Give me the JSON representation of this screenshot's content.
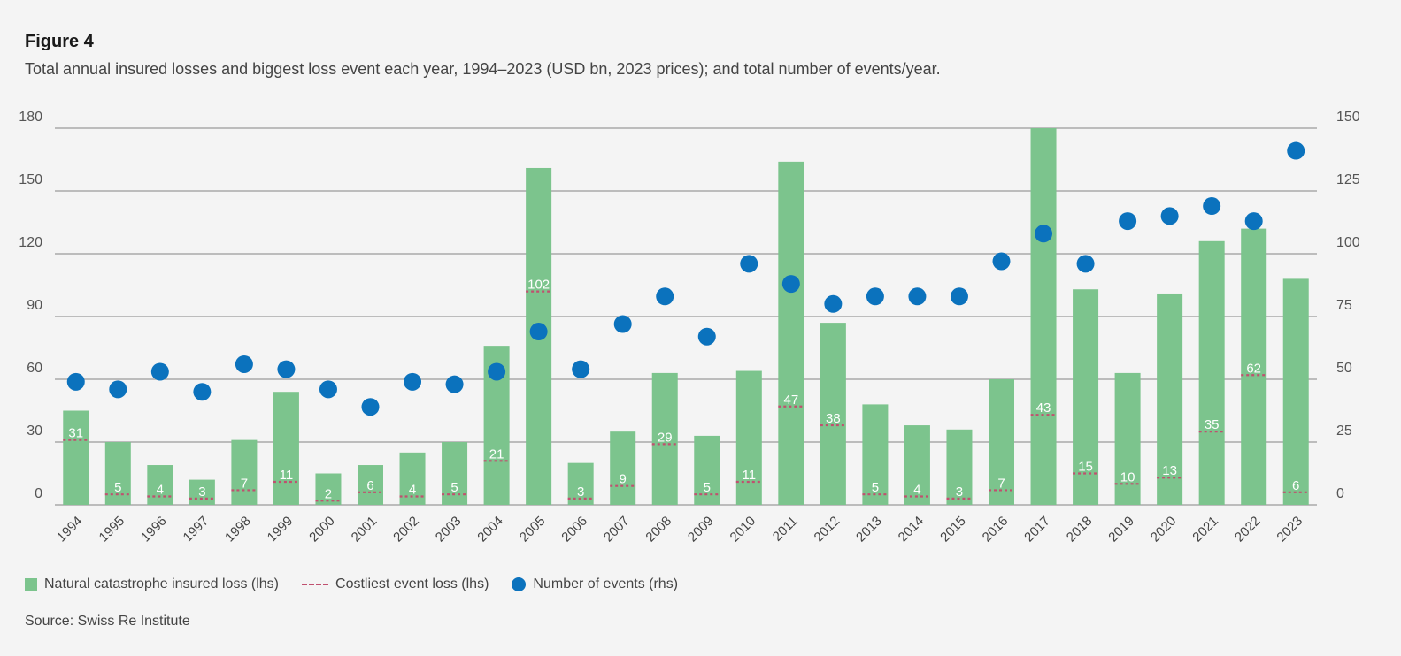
{
  "figure_label": "Figure 4",
  "subtitle": "Total annual insured losses and biggest loss event each year, 1994–2023 (USD bn, 2023 prices); and total number of events/year.",
  "source": "Source: Swiss Re Institute",
  "legend": {
    "bar": "Natural catastrophe insured loss (lhs)",
    "dash": "Costliest event loss (lhs)",
    "dot": "Number of events (rhs)"
  },
  "colors": {
    "bar": "#7cc48d",
    "dash": "#c0506f",
    "dot": "#0b72bd",
    "grid": "#9a9a9a"
  },
  "chart_data": {
    "type": "bar",
    "categories": [
      "1994",
      "1995",
      "1996",
      "1997",
      "1998",
      "1999",
      "2000",
      "2001",
      "2002",
      "2003",
      "2004",
      "2005",
      "2006",
      "2007",
      "2008",
      "2009",
      "2010",
      "2011",
      "2012",
      "2013",
      "2014",
      "2015",
      "2016",
      "2017",
      "2018",
      "2019",
      "2020",
      "2021",
      "2022",
      "2023"
    ],
    "series": [
      {
        "name": "Natural catastrophe insured loss (lhs)",
        "type": "bar",
        "axis": "left",
        "values": [
          45,
          30,
          19,
          12,
          31,
          54,
          15,
          19,
          25,
          30,
          76,
          161,
          20,
          35,
          63,
          33,
          64,
          164,
          87,
          48,
          38,
          36,
          60,
          180,
          103,
          63,
          101,
          126,
          132,
          108
        ]
      },
      {
        "name": "Costliest event loss (lhs)",
        "type": "marker",
        "axis": "left",
        "values": [
          31,
          5,
          4,
          3,
          7,
          11,
          2,
          6,
          4,
          5,
          21,
          102,
          3,
          9,
          29,
          5,
          11,
          47,
          38,
          5,
          4,
          3,
          7,
          43,
          15,
          10,
          13,
          35,
          62,
          6
        ]
      },
      {
        "name": "Number of events (rhs)",
        "type": "scatter",
        "axis": "right",
        "values": [
          49,
          46,
          53,
          45,
          56,
          54,
          46,
          39,
          49,
          48,
          53,
          69,
          54,
          72,
          83,
          67,
          96,
          88,
          80,
          83,
          83,
          83,
          97,
          108,
          96,
          113,
          115,
          119,
          113,
          141
        ]
      }
    ],
    "y_left": {
      "min": 0,
      "max": 180,
      "ticks": [
        0,
        30,
        60,
        90,
        120,
        150,
        180
      ]
    },
    "y_right": {
      "min": 0,
      "max": 150,
      "ticks": [
        0,
        25,
        50,
        75,
        100,
        125,
        150
      ]
    },
    "grid": true,
    "legend_position": "bottom-left"
  }
}
